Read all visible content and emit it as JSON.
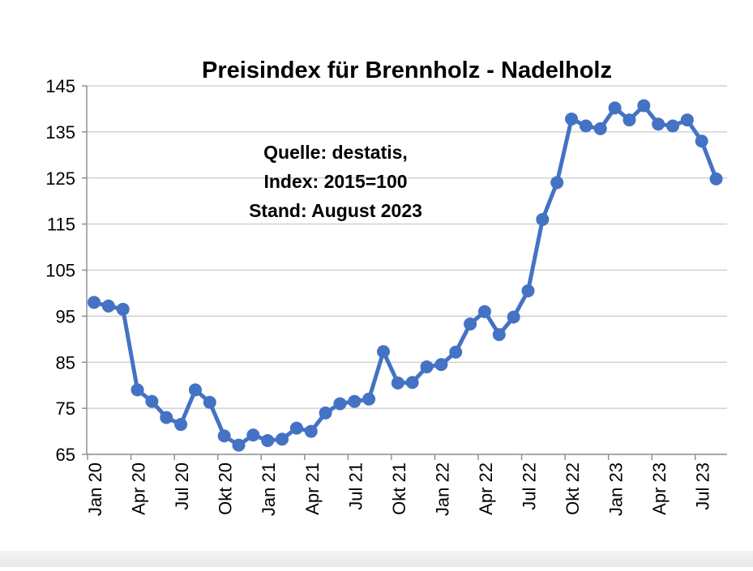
{
  "chart_data": {
    "type": "line",
    "title": "Preisindex für Brennholz - Nadelholz",
    "annotation": [
      "Quelle: destatis,",
      "Index: 2015=100",
      "Stand:  August  2023"
    ],
    "xlabel": "",
    "ylabel": "",
    "ylim": [
      65,
      145
    ],
    "yticks": [
      65,
      75,
      85,
      95,
      105,
      115,
      125,
      135,
      145
    ],
    "grid": true,
    "legend": "none",
    "x": [
      "Jan 20",
      "Feb 20",
      "Mär 20",
      "Apr 20",
      "Mai 20",
      "Jun 20",
      "Jul 20",
      "Aug 20",
      "Sep 20",
      "Okt 20",
      "Nov 20",
      "Dez 20",
      "Jan 21",
      "Feb 21",
      "Mär 21",
      "Apr 21",
      "Mai 21",
      "Jun 21",
      "Jul 21",
      "Aug 21",
      "Sep 21",
      "Okt 21",
      "Nov 21",
      "Dez 21",
      "Jan 22",
      "Feb 22",
      "Mär 22",
      "Apr 22",
      "Mai 22",
      "Jun 22",
      "Jul 22",
      "Aug 22",
      "Sep 22",
      "Okt 22",
      "Nov 22",
      "Dez 22",
      "Jan 23",
      "Feb 23",
      "Mär 23",
      "Apr 23",
      "Mai 23",
      "Jun 23",
      "Jul 23",
      "Aug 23"
    ],
    "xtick_labels": [
      {
        "index": 0,
        "label": "Jan 20"
      },
      {
        "index": 3,
        "label": "Apr 20"
      },
      {
        "index": 6,
        "label": "Jul 20"
      },
      {
        "index": 9,
        "label": "Okt 20"
      },
      {
        "index": 12,
        "label": "Jan 21"
      },
      {
        "index": 15,
        "label": "Apr 21"
      },
      {
        "index": 18,
        "label": "Jul 21"
      },
      {
        "index": 21,
        "label": "Okt 21"
      },
      {
        "index": 24,
        "label": "Jan 22"
      },
      {
        "index": 27,
        "label": "Apr 22"
      },
      {
        "index": 30,
        "label": "Jul 22"
      },
      {
        "index": 33,
        "label": "Okt 22"
      },
      {
        "index": 36,
        "label": "Jan 23"
      },
      {
        "index": 39,
        "label": "Apr 23"
      },
      {
        "index": 42,
        "label": "Jul 23"
      }
    ],
    "series": [
      {
        "color": "#4472c4",
        "values": [
          98.0,
          97.2,
          96.5,
          79.0,
          76.5,
          73.0,
          71.5,
          79.0,
          76.3,
          69.0,
          67.0,
          69.2,
          68.0,
          68.3,
          70.7,
          70.0,
          74.0,
          76.0,
          76.5,
          77.0,
          87.3,
          80.5,
          80.6,
          84.0,
          84.5,
          87.2,
          93.3,
          96.0,
          91.0,
          94.8,
          100.5,
          116.0,
          124.0,
          137.8,
          136.3,
          135.7,
          140.2,
          137.6,
          140.7,
          136.7,
          136.3,
          137.6,
          133.0,
          124.8
        ]
      }
    ]
  }
}
